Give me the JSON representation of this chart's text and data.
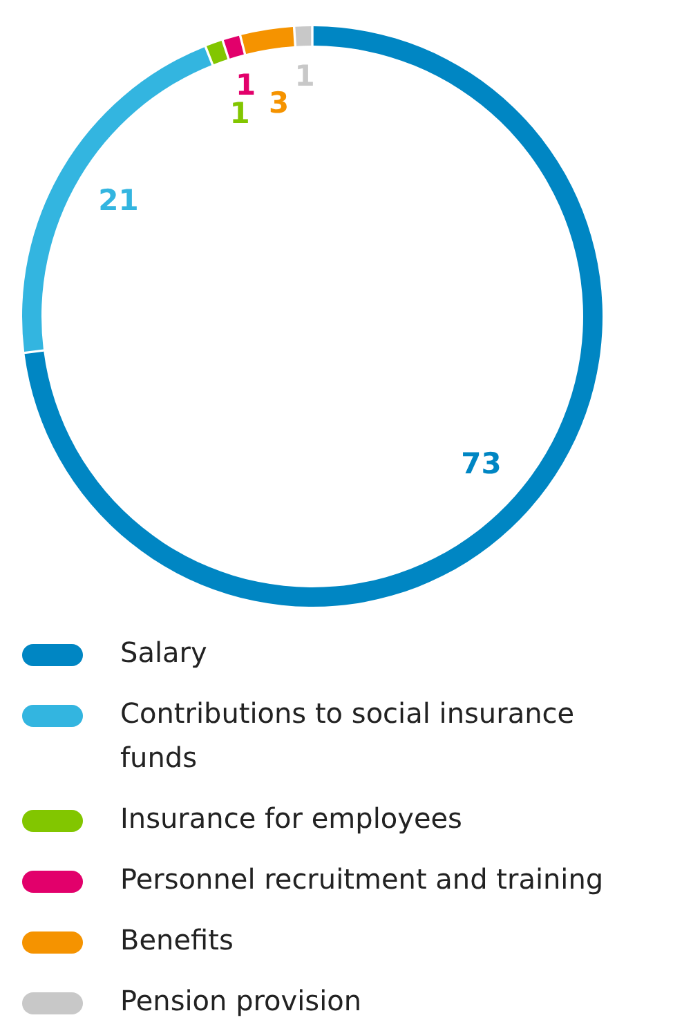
{
  "chart_data": {
    "type": "donut",
    "categories": [
      "Salary",
      "Contributions to social insurance funds",
      "Insurance for employees",
      "Personnel recruitment and training",
      "Benefits",
      "Pension provision"
    ],
    "values": [
      73,
      21,
      1,
      1,
      3,
      1
    ],
    "colors": [
      "#0086c3",
      "#33b5e0",
      "#82c600",
      "#e2006b",
      "#f59300",
      "#c8c8c8"
    ],
    "data_labels": true,
    "legend": "bottom"
  }
}
